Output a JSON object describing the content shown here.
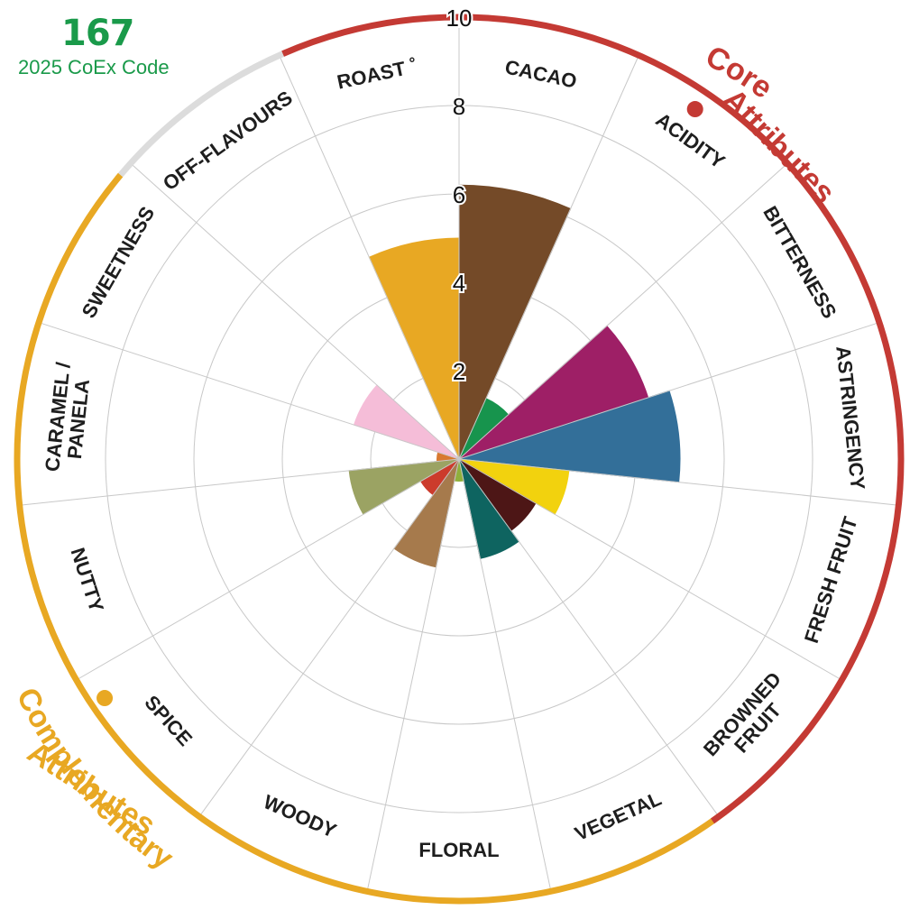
{
  "header": {
    "code_number": "167",
    "code_caption": "2025 CoEx Code"
  },
  "chart_data": {
    "type": "polar-bar",
    "rlim": [
      0,
      10
    ],
    "r_ticks": [
      "2",
      "4",
      "6",
      "8",
      "10"
    ],
    "grid": true,
    "categories": [
      {
        "name": "CACAO",
        "value": 6.2,
        "color": "#744a28"
      },
      {
        "name": "ACIDITY",
        "value": 1.5,
        "color": "#17944d"
      },
      {
        "name": "BITTERNESS",
        "value": 4.5,
        "color": "#9e1f66"
      },
      {
        "name": "ASTRINGENCY",
        "value": 5.0,
        "color": "#336f99"
      },
      {
        "name": "FRESH FRUIT",
        "value": 2.5,
        "color": "#f2d20e"
      },
      {
        "name": "BROWNED FRUIT",
        "value": 2.0,
        "color": "#4d1616"
      },
      {
        "name": "VEGETAL",
        "value": 2.3,
        "color": "#0e6460"
      },
      {
        "name": "FLORAL",
        "value": 0.5,
        "color": "#8fb03c"
      },
      {
        "name": "WOODY",
        "value": 2.5,
        "color": "#a67a4c"
      },
      {
        "name": "SPICE",
        "value": 1.0,
        "color": "#cc3b2c"
      },
      {
        "name": "NUTTY",
        "value": 2.5,
        "color": "#9ba363"
      },
      {
        "name": "CARAMEL / PANELA",
        "value": 0.5,
        "color": "#d87930"
      },
      {
        "name": "SWEETNESS",
        "value": 2.5,
        "color": "#f5bdd8"
      },
      {
        "name": "OFF-FLAVOURS",
        "value": 0,
        "color": "#cccccc"
      },
      {
        "name": "ROAST ˚",
        "value": 5.0,
        "color": "#e8a823"
      }
    ],
    "groups": [
      {
        "name": "Core Attributes",
        "line1": "Core",
        "line2": "Attributes",
        "color": "#c43a34"
      },
      {
        "name": "Complementary Attributes",
        "line1": "Complementary",
        "line2": "Attributes",
        "color": "#e8a823"
      },
      {
        "name": "Off-Flavours",
        "color": "#dcdcdc"
      }
    ]
  }
}
